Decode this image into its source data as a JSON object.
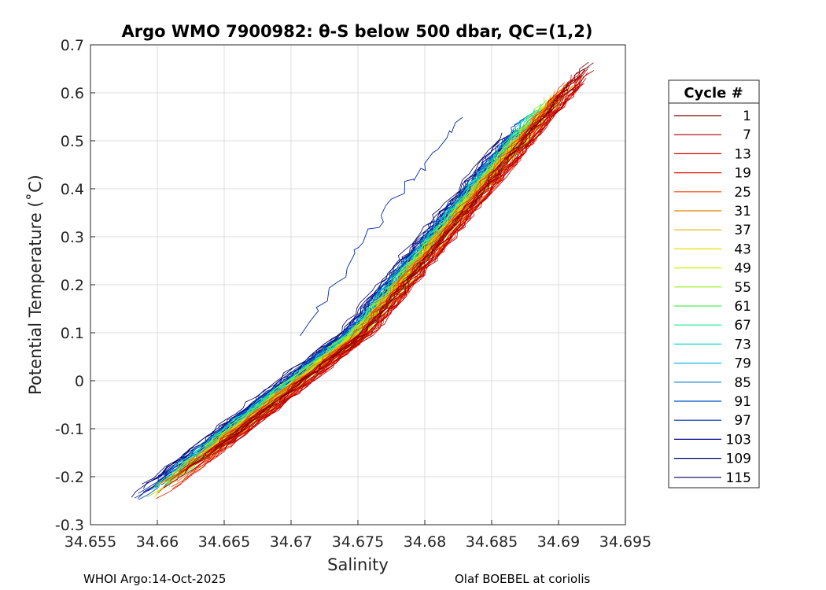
{
  "chart_data": {
    "type": "line",
    "title": "Argo WMO 7900982: θ-S below 500 dbar,  QC=(1,2)",
    "xlabel": "Salinity",
    "ylabel": "Potential Temperature (˚C)",
    "xlim": [
      34.655,
      34.695
    ],
    "ylim": [
      -0.3,
      0.7
    ],
    "x_ticks": [
      34.655,
      34.66,
      34.665,
      34.67,
      34.675,
      34.68,
      34.685,
      34.69,
      34.695
    ],
    "x_tick_labels": [
      "34.655",
      "34.66",
      "34.665",
      "34.67",
      "34.675",
      "34.68",
      "34.685",
      "34.69",
      "34.695"
    ],
    "y_ticks": [
      0.7,
      0.6,
      0.5,
      0.4,
      0.3,
      0.2,
      0.1,
      0,
      -0.1,
      -0.2,
      -0.3
    ],
    "y_tick_labels": [
      "0.7",
      "0.6",
      "0.5",
      "0.4",
      "0.3",
      "0.2",
      "0.1",
      "0",
      "-0.1",
      "-0.2",
      "-0.3"
    ],
    "grid": true,
    "legend_title": "Cycle #",
    "legend_placement": "right",
    "legend": [
      {
        "label": "1",
        "color": "#7f0000"
      },
      {
        "label": "7",
        "color": "#a30000"
      },
      {
        "label": "13",
        "color": "#d40000"
      },
      {
        "label": "19",
        "color": "#e81800"
      },
      {
        "label": "25",
        "color": "#f04000"
      },
      {
        "label": "31",
        "color": "#e08000"
      },
      {
        "label": "37",
        "color": "#e8b000"
      },
      {
        "label": "43",
        "color": "#e6e000"
      },
      {
        "label": "49",
        "color": "#c8f000"
      },
      {
        "label": "55",
        "color": "#90f020"
      },
      {
        "label": "61",
        "color": "#50f050"
      },
      {
        "label": "67",
        "color": "#20e890"
      },
      {
        "label": "73",
        "color": "#10d8c8"
      },
      {
        "label": "79",
        "color": "#10b8e8"
      },
      {
        "label": "85",
        "color": "#0878d0"
      },
      {
        "label": "91",
        "color": "#0050c0"
      },
      {
        "label": "97",
        "color": "#0028b0"
      },
      {
        "label": "103",
        "color": "#000090"
      },
      {
        "label": "109",
        "color": "#000070"
      },
      {
        "label": "115",
        "color": "#000060"
      }
    ],
    "series_shape": {
      "deep_end": [
        34.658,
        -0.27
      ],
      "mid_point": [
        34.675,
        0.1
      ],
      "shallow_end": [
        34.692,
        0.67
      ],
      "offset_blue_profile": [
        [
          34.671,
          0.1
        ],
        [
          34.675,
          0.28
        ],
        [
          34.679,
          0.42
        ],
        [
          34.683,
          0.55
        ]
      ]
    }
  },
  "footer": {
    "left": "WHOI Argo:14-Oct-2025",
    "right": "Olaf BOEBEL at coriolis"
  }
}
